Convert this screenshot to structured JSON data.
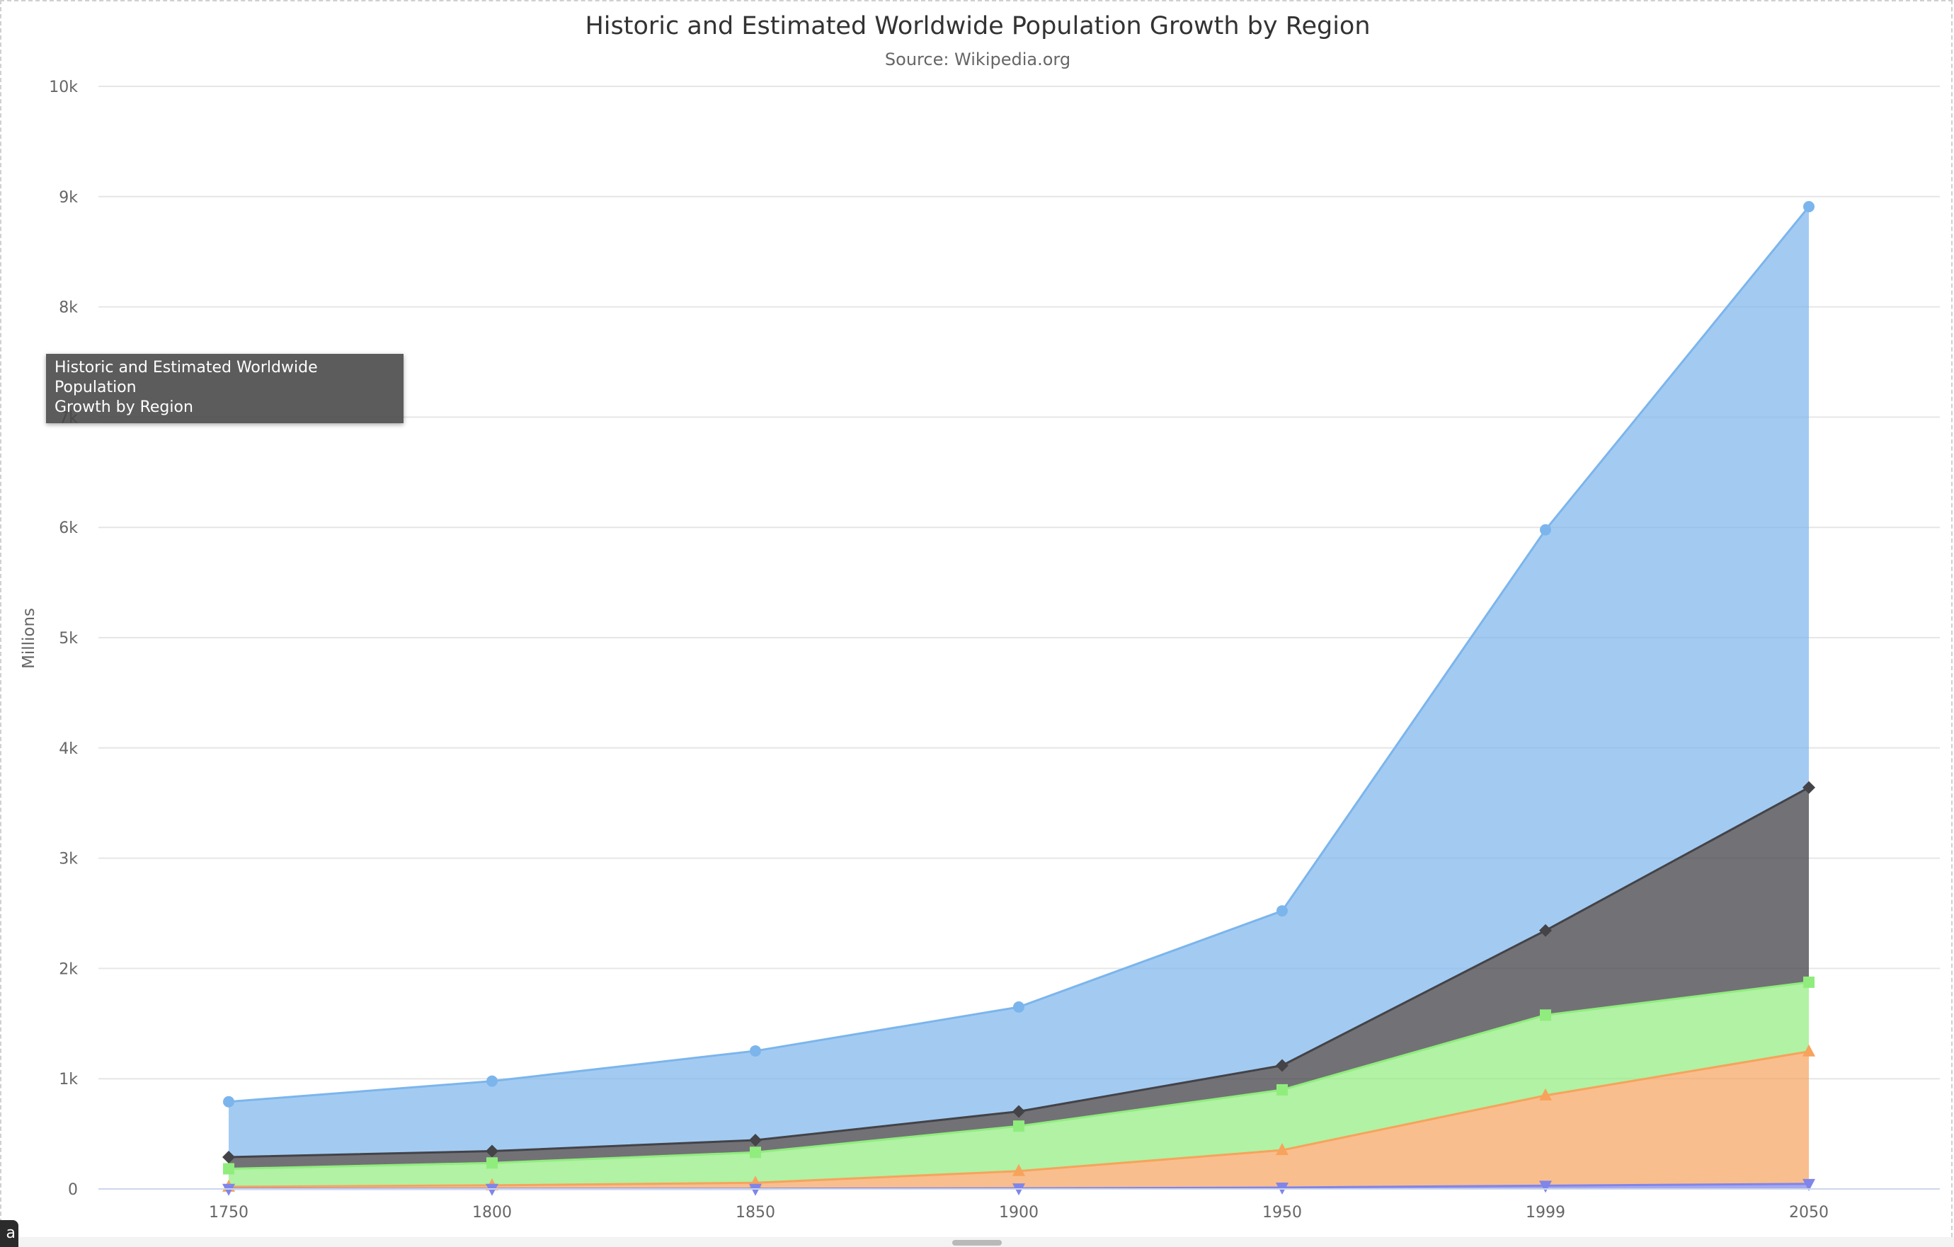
{
  "chart_data": {
    "type": "area",
    "stacking": "normal",
    "title": "Historic and Estimated Worldwide Population Growth by Region",
    "subtitle": "Source: Wikipedia.org",
    "ylabel": "Millions",
    "xlabel": "",
    "categories": [
      "1750",
      "1800",
      "1850",
      "1900",
      "1950",
      "1999",
      "2050"
    ],
    "ylim": [
      0,
      10000
    ],
    "yticks": [
      0,
      1000,
      2000,
      3000,
      4000,
      5000,
      6000,
      7000,
      8000,
      9000,
      10000
    ],
    "ytick_labels": [
      "0",
      "1k",
      "2k",
      "3k",
      "4k",
      "5k",
      "6k",
      "7k",
      "8k",
      "9k",
      "10k"
    ],
    "grid": true,
    "series": [
      {
        "values": [
          502,
          635,
          809,
          947,
          1402,
          3634,
          5268
        ],
        "color": "#7cb5ec",
        "marker": "circle"
      },
      {
        "values": [
          106,
          107,
          111,
          133,
          221,
          767,
          1766
        ],
        "color": "#434348",
        "marker": "diamond"
      },
      {
        "values": [
          163,
          203,
          276,
          408,
          547,
          729,
          628
        ],
        "color": "#90ed7d",
        "marker": "square"
      },
      {
        "values": [
          18,
          31,
          54,
          156,
          339,
          818,
          1201
        ],
        "color": "#f7a35c",
        "marker": "triangle"
      },
      {
        "values": [
          2,
          2,
          2,
          6,
          13,
          30,
          46
        ],
        "color": "#8085e9",
        "marker": "triangle-down"
      }
    ]
  },
  "tooltip": {
    "line1": "Historic and Estimated Worldwide Population",
    "line2": "Growth by Region"
  },
  "corner_badge": "a"
}
